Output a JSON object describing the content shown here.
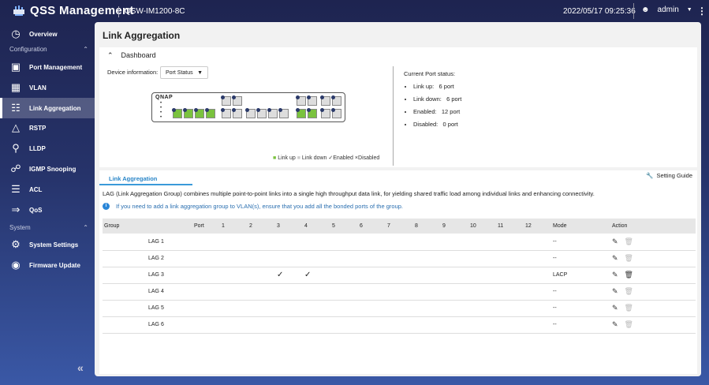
{
  "header": {
    "app_title": "QSS  Management",
    "model": "QSW-IM1200-8C",
    "datetime": "2022/05/17  09:25:36",
    "user": "admin"
  },
  "sidebar": {
    "items": [
      {
        "label": "Overview",
        "icon": "gauge-icon"
      },
      {
        "label": "Port Management",
        "icon": "port-icon"
      },
      {
        "label": "VLAN",
        "icon": "vlan-icon"
      },
      {
        "label": "Link Aggregation",
        "icon": "link-aggregation-icon",
        "active": true
      },
      {
        "label": "RSTP",
        "icon": "rstp-icon"
      },
      {
        "label": "LLDP",
        "icon": "lldp-icon"
      },
      {
        "label": "IGMP Snooping",
        "icon": "igmp-icon"
      },
      {
        "label": "ACL",
        "icon": "list-icon"
      },
      {
        "label": "QoS",
        "icon": "qos-icon"
      },
      {
        "label": "System Settings",
        "icon": "gear-icon"
      },
      {
        "label": "Firmware Update",
        "icon": "firmware-icon"
      }
    ],
    "sections": {
      "configuration": "Configuration",
      "system": "System"
    }
  },
  "page": {
    "title": "Link Aggregation"
  },
  "dashboard": {
    "title": "Dashboard",
    "device_info_label": "Device information:",
    "device_select": "Port Status",
    "brand": "QNAP",
    "legend": {
      "up": "Link up",
      "down": "Link down",
      "enabled": "Enabled",
      "disabled": "Disabled"
    },
    "status_title": "Current Port status:",
    "status": [
      {
        "label": "Link up:",
        "value": "6 port"
      },
      {
        "label": "Link down:",
        "value": "6 port"
      },
      {
        "label": "Enabled:",
        "value": "12 port"
      },
      {
        "label": "Disabled:",
        "value": "0 port"
      }
    ],
    "colors": {
      "link_up": "#7ac23e",
      "link_down": "#dddddd"
    }
  },
  "lag": {
    "tab": "Link Aggregation",
    "setting_guide": "Setting Guide",
    "description": "LAG (Link Aggregation Group) combines multiple point-to-point links into a single high throughput data link, for yielding shared traffic load among individual links and enhancing connectivity.",
    "note": "If you need to add a link aggregation group to VLAN(s), ensure that you add all the bonded ports of the group.",
    "columns": {
      "group": "Group",
      "port": "Port",
      "ports": [
        "1",
        "2",
        "3",
        "4",
        "5",
        "6",
        "7",
        "8",
        "9",
        "10",
        "11",
        "12"
      ],
      "mode": "Mode",
      "action": "Action"
    },
    "rows": [
      {
        "name": "LAG 1",
        "ports": [],
        "mode": "--",
        "deletable": false
      },
      {
        "name": "LAG 2",
        "ports": [],
        "mode": "--",
        "deletable": false
      },
      {
        "name": "LAG 3",
        "ports": [
          3,
          4
        ],
        "mode": "LACP",
        "deletable": true
      },
      {
        "name": "LAG 4",
        "ports": [],
        "mode": "--",
        "deletable": false
      },
      {
        "name": "LAG 5",
        "ports": [],
        "mode": "--",
        "deletable": false
      },
      {
        "name": "LAG 6",
        "ports": [],
        "mode": "--",
        "deletable": false
      }
    ]
  }
}
